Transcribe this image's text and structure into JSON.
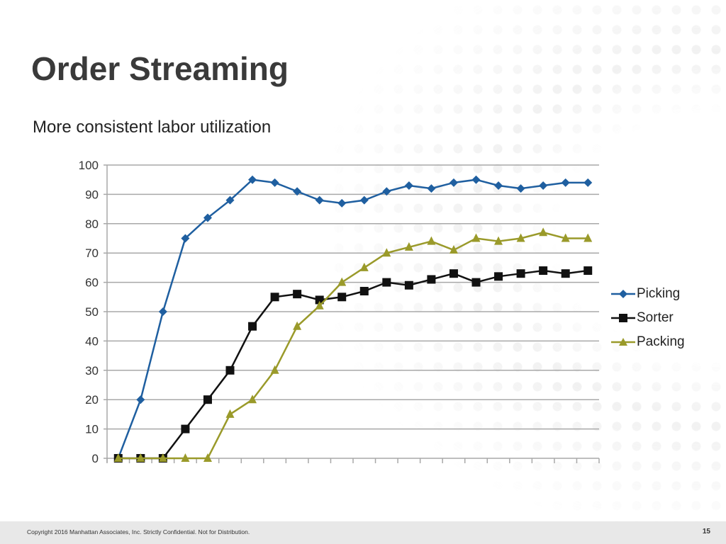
{
  "slide": {
    "title": "Order Streaming",
    "subtitle": "More consistent labor utilization",
    "copyright": "Copyright 2016 Manhattan Associates, Inc. Strictly Confidential. Not for Distribution.",
    "page_number": "15"
  },
  "chart_data": {
    "type": "line",
    "title": "",
    "xlabel": "",
    "ylabel": "",
    "ylim": [
      0,
      100
    ],
    "yticks": [
      "0",
      "10",
      "20",
      "30",
      "40",
      "50",
      "60",
      "70",
      "80",
      "90",
      "100"
    ],
    "grid": true,
    "legend_position": "right",
    "x": [
      1,
      2,
      3,
      4,
      5,
      6,
      7,
      8,
      9,
      10,
      11,
      12,
      13,
      14,
      15,
      16,
      17,
      18,
      19,
      20,
      21,
      22
    ],
    "series": [
      {
        "name": "Picking",
        "color": "#1f5fa0",
        "marker": "diamond",
        "values": [
          0,
          20,
          50,
          75,
          82,
          88,
          95,
          94,
          91,
          88,
          87,
          88,
          91,
          93,
          92,
          94,
          95,
          93,
          92,
          93,
          94,
          94
        ]
      },
      {
        "name": "Sorter",
        "color": "#111111",
        "marker": "square",
        "values": [
          0,
          0,
          0,
          10,
          20,
          30,
          45,
          55,
          56,
          54,
          55,
          57,
          60,
          59,
          61,
          63,
          60,
          62,
          63,
          64,
          63,
          64
        ]
      },
      {
        "name": "Packing",
        "color": "#9a9a2a",
        "marker": "triangle",
        "values": [
          0,
          0,
          0,
          0,
          0,
          15,
          20,
          30,
          45,
          52,
          60,
          65,
          70,
          72,
          74,
          71,
          75,
          74,
          75,
          77,
          75,
          75
        ]
      }
    ]
  }
}
